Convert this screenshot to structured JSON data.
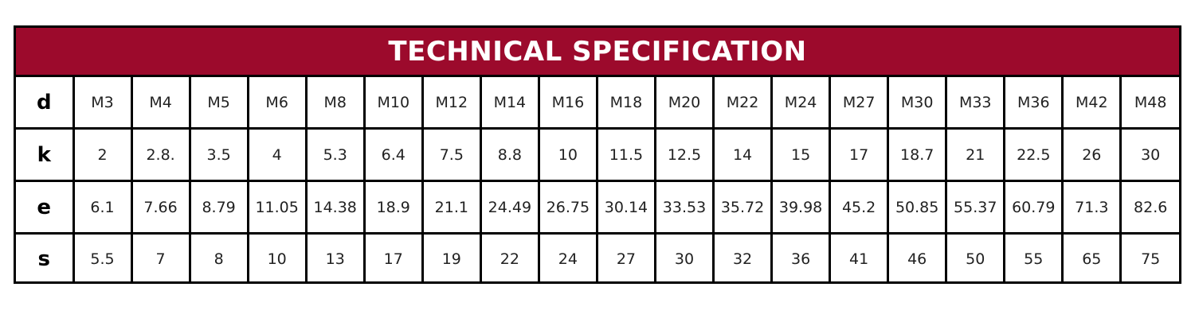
{
  "title": "TECHNICAL SPECIFICATION",
  "accent_color": "#9c0a2c",
  "rows": [
    {
      "label": "d",
      "values": [
        "M3",
        "M4",
        "M5",
        "M6",
        "M8",
        "M10",
        "M12",
        "M14",
        "M16",
        "M18",
        "M20",
        "M22",
        "M24",
        "M27",
        "M30",
        "M33",
        "M36",
        "M42",
        "M48"
      ]
    },
    {
      "label": "k",
      "values": [
        "2",
        "2.8.",
        "3.5",
        "4",
        "5.3",
        "6.4",
        "7.5",
        "8.8",
        "10",
        "11.5",
        "12.5",
        "14",
        "15",
        "17",
        "18.7",
        "21",
        "22.5",
        "26",
        "30"
      ]
    },
    {
      "label": "e",
      "values": [
        "6.1",
        "7.66",
        "8.79",
        "11.05",
        "14.38",
        "18.9",
        "21.1",
        "24.49",
        "26.75",
        "30.14",
        "33.53",
        "35.72",
        "39.98",
        "45.2",
        "50.85",
        "55.37",
        "60.79",
        "71.3",
        "82.6"
      ]
    },
    {
      "label": "s",
      "values": [
        "5.5",
        "7",
        "8",
        "10",
        "13",
        "17",
        "19",
        "22",
        "24",
        "27",
        "30",
        "32",
        "36",
        "41",
        "46",
        "50",
        "55",
        "65",
        "75"
      ]
    }
  ]
}
